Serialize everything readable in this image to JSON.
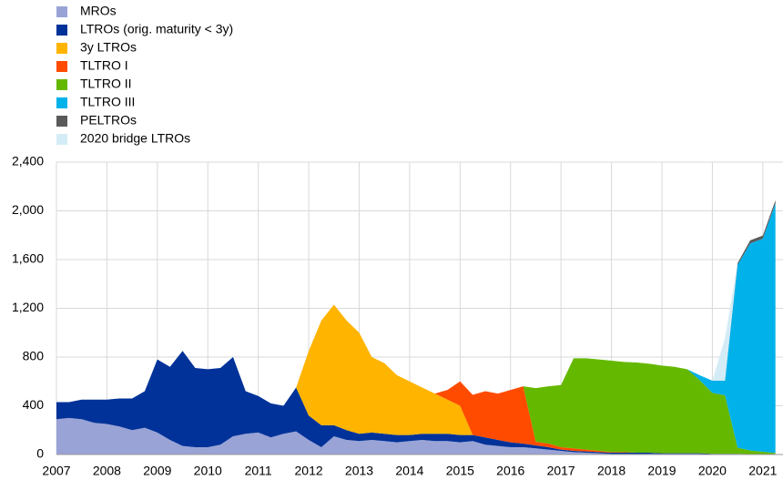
{
  "chart_data": {
    "type": "stacked-area",
    "x": [
      2007,
      2007.25,
      2007.5,
      2007.75,
      2008,
      2008.25,
      2008.5,
      2008.75,
      2009,
      2009.25,
      2009.5,
      2009.75,
      2010,
      2010.25,
      2010.5,
      2010.75,
      2011,
      2011.25,
      2011.5,
      2011.75,
      2012,
      2012.25,
      2012.5,
      2012.75,
      2013,
      2013.25,
      2013.5,
      2013.75,
      2014,
      2014.25,
      2014.5,
      2014.75,
      2015,
      2015.25,
      2015.5,
      2015.75,
      2016,
      2016.25,
      2016.5,
      2016.75,
      2017,
      2017.25,
      2017.5,
      2017.75,
      2018,
      2018.25,
      2018.5,
      2018.75,
      2019,
      2019.25,
      2019.5,
      2019.75,
      2020,
      2020.25,
      2020.5,
      2020.75,
      2021,
      2021.25
    ],
    "series": [
      {
        "name": "MROs",
        "color": "#99a3d6",
        "values": [
          290,
          300,
          290,
          260,
          250,
          230,
          200,
          220,
          180,
          120,
          70,
          60,
          60,
          80,
          150,
          170,
          180,
          140,
          170,
          190,
          120,
          60,
          150,
          120,
          110,
          120,
          110,
          100,
          110,
          120,
          110,
          110,
          100,
          110,
          80,
          70,
          60,
          60,
          50,
          40,
          30,
          20,
          15,
          10,
          5,
          5,
          5,
          5,
          5,
          5,
          5,
          5,
          1,
          1,
          1,
          1,
          0,
          0
        ]
      },
      {
        "name": "LTROs (orig. maturity < 3y)",
        "color": "#003299",
        "values": [
          140,
          130,
          160,
          190,
          200,
          230,
          260,
          300,
          600,
          600,
          780,
          650,
          640,
          630,
          650,
          350,
          300,
          280,
          230,
          360,
          200,
          180,
          90,
          80,
          60,
          60,
          60,
          60,
          50,
          50,
          60,
          60,
          60,
          50,
          60,
          50,
          40,
          30,
          25,
          20,
          10,
          10,
          10,
          10,
          10,
          10,
          10,
          10,
          5,
          5,
          5,
          5,
          5,
          5,
          5,
          2,
          2,
          2
        ]
      },
      {
        "name": "3y LTROs",
        "color": "#ffb400",
        "values": [
          0,
          0,
          0,
          0,
          0,
          0,
          0,
          0,
          0,
          0,
          0,
          0,
          0,
          0,
          0,
          0,
          0,
          0,
          0,
          0,
          530,
          860,
          990,
          900,
          830,
          620,
          580,
          490,
          440,
          380,
          330,
          280,
          240,
          0,
          0,
          0,
          0,
          0,
          0,
          0,
          0,
          0,
          0,
          0,
          0,
          0,
          0,
          0,
          0,
          0,
          0,
          0,
          0,
          0,
          0,
          0,
          0,
          0
        ]
      },
      {
        "name": "TLTRO I",
        "color": "#ff4b00",
        "values": [
          0,
          0,
          0,
          0,
          0,
          0,
          0,
          0,
          0,
          0,
          0,
          0,
          0,
          0,
          0,
          0,
          0,
          0,
          0,
          0,
          0,
          0,
          0,
          0,
          0,
          0,
          0,
          0,
          0,
          0,
          0,
          80,
          200,
          330,
          380,
          380,
          430,
          470,
          30,
          30,
          20,
          20,
          15,
          10,
          5,
          5,
          0,
          0,
          0,
          0,
          0,
          0,
          0,
          0,
          0,
          0,
          0,
          0
        ]
      },
      {
        "name": "TLTRO II",
        "color": "#65b800",
        "values": [
          0,
          0,
          0,
          0,
          0,
          0,
          0,
          0,
          0,
          0,
          0,
          0,
          0,
          0,
          0,
          0,
          0,
          0,
          0,
          0,
          0,
          0,
          0,
          0,
          0,
          0,
          0,
          0,
          0,
          0,
          0,
          0,
          0,
          0,
          0,
          0,
          0,
          0,
          440,
          470,
          510,
          740,
          750,
          750,
          750,
          740,
          740,
          730,
          720,
          710,
          690,
          600,
          500,
          480,
          50,
          30,
          20,
          10
        ]
      },
      {
        "name": "TLTRO III",
        "color": "#00b1ea",
        "values": [
          0,
          0,
          0,
          0,
          0,
          0,
          0,
          0,
          0,
          0,
          0,
          0,
          0,
          0,
          0,
          0,
          0,
          0,
          0,
          0,
          0,
          0,
          0,
          0,
          0,
          0,
          0,
          0,
          0,
          0,
          0,
          0,
          0,
          0,
          0,
          0,
          0,
          0,
          0,
          0,
          0,
          0,
          0,
          0,
          0,
          0,
          0,
          0,
          0,
          0,
          0,
          40,
          100,
          120,
          1500,
          1700,
          1750,
          2050
        ]
      },
      {
        "name": "PELTROs",
        "color": "#5a5a5a",
        "values": [
          0,
          0,
          0,
          0,
          0,
          0,
          0,
          0,
          0,
          0,
          0,
          0,
          0,
          0,
          0,
          0,
          0,
          0,
          0,
          0,
          0,
          0,
          0,
          0,
          0,
          0,
          0,
          0,
          0,
          0,
          0,
          0,
          0,
          0,
          0,
          0,
          0,
          0,
          0,
          0,
          0,
          0,
          0,
          0,
          0,
          0,
          0,
          0,
          0,
          0,
          0,
          0,
          0,
          0,
          15,
          25,
          25,
          25
        ]
      },
      {
        "name": "2020 bridge LTROs",
        "color": "#d4ecf6",
        "values": [
          0,
          0,
          0,
          0,
          0,
          0,
          0,
          0,
          0,
          0,
          0,
          0,
          0,
          0,
          0,
          0,
          0,
          0,
          0,
          0,
          0,
          0,
          0,
          0,
          0,
          0,
          0,
          0,
          0,
          0,
          0,
          0,
          0,
          0,
          0,
          0,
          0,
          0,
          0,
          0,
          0,
          0,
          0,
          0,
          0,
          0,
          0,
          0,
          0,
          0,
          0,
          0,
          0,
          350,
          0,
          0,
          0,
          0
        ]
      }
    ],
    "xlim": [
      2007,
      2021.4
    ],
    "xticks": [
      2007,
      2008,
      2009,
      2010,
      2011,
      2012,
      2013,
      2014,
      2015,
      2016,
      2017,
      2018,
      2019,
      2020,
      2021
    ],
    "ylim": [
      0,
      2400
    ],
    "yticks": [
      0,
      400,
      800,
      {
        "value": 1200,
        "label": "1,200"
      },
      {
        "value": 1600,
        "label": "1,600"
      },
      {
        "value": 2000,
        "label": "2,000"
      },
      {
        "value": 2400,
        "label": "2,400"
      }
    ],
    "grid": true,
    "legend": "top-left"
  }
}
